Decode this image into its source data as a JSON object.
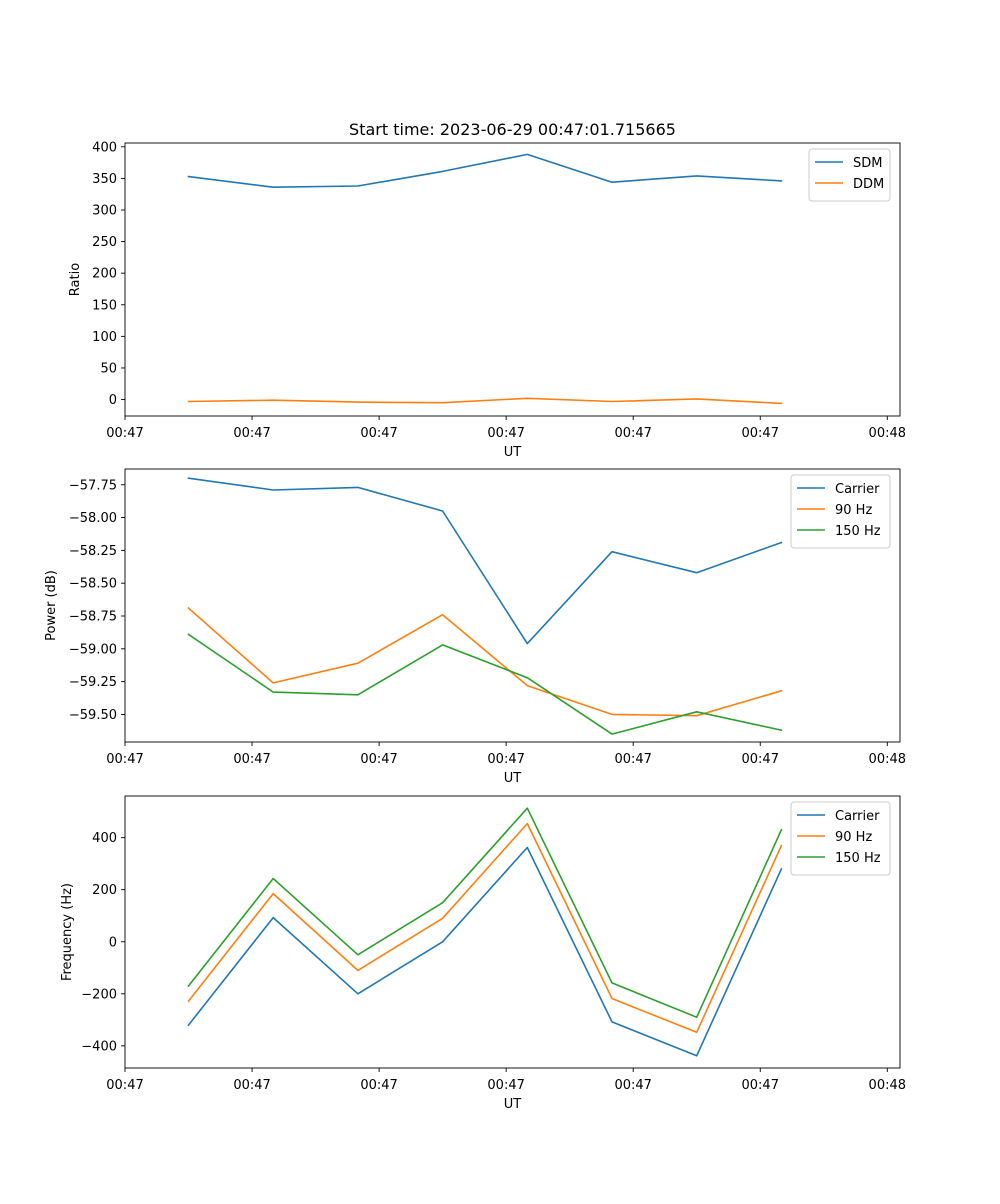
{
  "figure": {
    "title": "Start time: 2023-06-29 00:47:01.715665"
  },
  "chart_data": [
    {
      "type": "line",
      "title": "Start time: 2023-06-29 00:47:01.715665",
      "xlabel": "UT",
      "ylabel": "Ratio",
      "x": [
        0,
        1,
        2,
        3,
        4,
        5,
        6,
        7
      ],
      "xlim": [
        -0.75,
        8.4
      ],
      "xticks": [
        -0.75,
        0.75,
        2.25,
        3.75,
        5.25,
        6.75,
        8.25
      ],
      "xtick_labels": [
        "00:47",
        "00:47",
        "00:47",
        "00:47",
        "00:47",
        "00:47",
        "00:48"
      ],
      "ylim": [
        -26,
        406
      ],
      "yticks": [
        0,
        50,
        100,
        150,
        200,
        250,
        300,
        350,
        400
      ],
      "ytick_labels": [
        "0",
        "50",
        "100",
        "150",
        "200",
        "250",
        "300",
        "350",
        "400"
      ],
      "legend_position": "top-right",
      "series": [
        {
          "name": "SDM",
          "color": "#1f77b4",
          "values": [
            353,
            336,
            338,
            361,
            388,
            344,
            354,
            346
          ]
        },
        {
          "name": "DDM",
          "color": "#ff7f0e",
          "values": [
            -3,
            -1,
            -4,
            -5,
            2,
            -3,
            1,
            -6
          ]
        }
      ]
    },
    {
      "type": "line",
      "title": "",
      "xlabel": "UT",
      "ylabel": "Power (dB)",
      "x": [
        0,
        1,
        2,
        3,
        4,
        5,
        6,
        7
      ],
      "xlim": [
        -0.75,
        8.4
      ],
      "xticks": [
        -0.75,
        0.75,
        2.25,
        3.75,
        5.25,
        6.75,
        8.25
      ],
      "xtick_labels": [
        "00:47",
        "00:47",
        "00:47",
        "00:47",
        "00:47",
        "00:47",
        "00:48"
      ],
      "ylim": [
        -59.71,
        -57.63
      ],
      "yticks": [
        -57.75,
        -58.0,
        -58.25,
        -58.5,
        -58.75,
        -59.0,
        -59.25,
        -59.5
      ],
      "ytick_labels": [
        "−57.75",
        "−58.00",
        "−58.25",
        "−58.50",
        "−58.75",
        "−59.00",
        "−59.25",
        "−59.50"
      ],
      "legend_position": "top-right",
      "series": [
        {
          "name": "Carrier",
          "color": "#1f77b4",
          "values": [
            -57.7,
            -57.79,
            -57.77,
            -57.95,
            -58.96,
            -58.26,
            -58.42,
            -58.19
          ]
        },
        {
          "name": "90 Hz",
          "color": "#ff7f0e",
          "values": [
            -58.69,
            -59.26,
            -59.11,
            -58.74,
            -59.28,
            -59.5,
            -59.51,
            -59.32
          ]
        },
        {
          "name": "150 Hz",
          "color": "#2ca02c",
          "values": [
            -58.89,
            -59.33,
            -59.35,
            -58.97,
            -59.22,
            -59.65,
            -59.48,
            -59.62
          ]
        }
      ]
    },
    {
      "type": "line",
      "title": "",
      "xlabel": "UT",
      "ylabel": "Frequency (Hz)",
      "x": [
        0,
        1,
        2,
        3,
        4,
        5,
        6,
        7
      ],
      "xlim": [
        -0.75,
        8.4
      ],
      "xticks": [
        -0.75,
        0.75,
        2.25,
        3.75,
        5.25,
        6.75,
        8.25
      ],
      "xtick_labels": [
        "00:47",
        "00:47",
        "00:47",
        "00:47",
        "00:47",
        "00:47",
        "00:48"
      ],
      "ylim": [
        -485,
        560
      ],
      "yticks": [
        -400,
        -200,
        0,
        200,
        400
      ],
      "ytick_labels": [
        "−400",
        "−200",
        "0",
        "200",
        "400"
      ],
      "legend_position": "top-right",
      "series": [
        {
          "name": "Carrier",
          "color": "#1f77b4",
          "values": [
            -320,
            93,
            -200,
            0,
            362,
            -308,
            -438,
            280
          ]
        },
        {
          "name": "90 Hz",
          "color": "#ff7f0e",
          "values": [
            -228,
            185,
            -110,
            90,
            454,
            -218,
            -348,
            370
          ]
        },
        {
          "name": "150 Hz",
          "color": "#2ca02c",
          "values": [
            -170,
            243,
            -50,
            150,
            513,
            -158,
            -290,
            430
          ]
        }
      ]
    }
  ]
}
